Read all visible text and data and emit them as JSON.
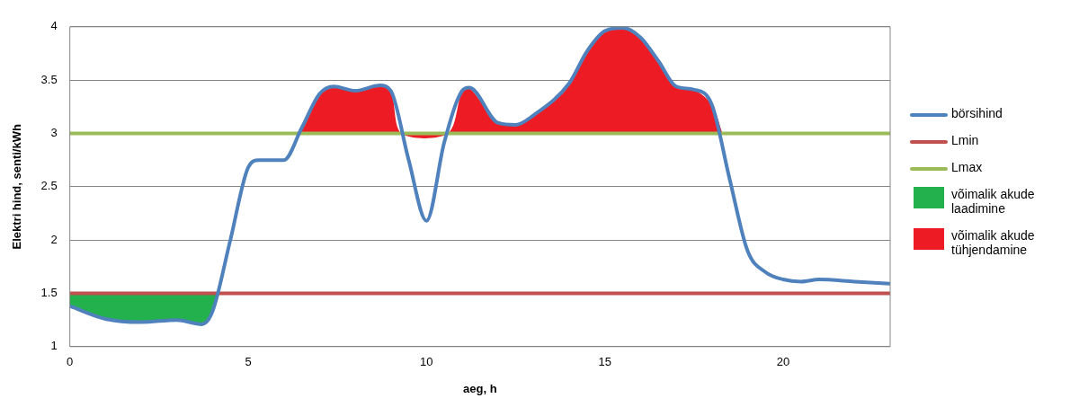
{
  "chart_data": {
    "type": "line",
    "xlabel": "aeg, h",
    "ylabel": "Elektri hind, senti/kWh",
    "xlim": [
      0,
      23
    ],
    "xticks": [
      0,
      5,
      10,
      15,
      20
    ],
    "ylim": [
      1,
      4
    ],
    "yticks": [
      1,
      1.5,
      2,
      2.5,
      3,
      3.5,
      4
    ],
    "grid": "y",
    "legend": "right",
    "marker": "none",
    "line_style": "solid",
    "series": [
      {
        "name": "börsihind",
        "color": "#4f81bd",
        "x": [
          0,
          1,
          2,
          3,
          3.7,
          4,
          4.5,
          5,
          5.3,
          6,
          6.5,
          7,
          7.4,
          8,
          8.7,
          9,
          9.5,
          10,
          10.5,
          11,
          11.2,
          12,
          12.5,
          13,
          14,
          14.5,
          15,
          15.5,
          16,
          16.5,
          17,
          17.5,
          18,
          18.5,
          19,
          19.5,
          20,
          20.5,
          21,
          22,
          23
        ],
        "values": [
          1.38,
          1.26,
          1.23,
          1.25,
          1.21,
          1.33,
          2.0,
          2.68,
          2.75,
          2.75,
          3.05,
          3.37,
          3.44,
          3.4,
          3.45,
          3.4,
          2.75,
          2.18,
          2.92,
          3.4,
          3.43,
          3.1,
          3.08,
          3.17,
          3.47,
          3.77,
          3.96,
          3.99,
          3.9,
          3.68,
          3.44,
          3.41,
          3.27,
          2.57,
          1.9,
          1.7,
          1.63,
          1.61,
          1.63,
          1.61,
          1.59
        ]
      },
      {
        "name": "Lmin",
        "color": "#c0504d",
        "x": [
          0,
          23
        ],
        "values": [
          1.5,
          1.5
        ]
      },
      {
        "name": "Lmax",
        "color": "#9bbb59",
        "x": [
          0,
          23
        ],
        "values": [
          3,
          3
        ]
      },
      {
        "name": "võimalik akude laadimine",
        "type": "area",
        "color": "#22b14c",
        "x": [
          0,
          0,
          1,
          2,
          3,
          3.7,
          4,
          4.15
        ],
        "values": [
          1.5,
          1.38,
          1.26,
          1.23,
          1.25,
          1.21,
          1.33,
          1.5
        ]
      },
      {
        "name": "võimalik akude tühjendamine",
        "type": "area",
        "color": "#ed1c24",
        "x": [
          6.4,
          7,
          7.4,
          8,
          8.7,
          9,
          9.3,
          10.6,
          11,
          11.2,
          12,
          12.5,
          13,
          14,
          14.5,
          15,
          15.5,
          16,
          16.5,
          17,
          17.5,
          18,
          18.3
        ],
        "values": [
          3,
          3.37,
          3.44,
          3.4,
          3.45,
          3.4,
          3,
          3,
          3.4,
          3.43,
          3.1,
          3.08,
          3.17,
          3.47,
          3.77,
          3.96,
          3.99,
          3.9,
          3.68,
          3.44,
          3.41,
          3.27,
          3
        ]
      }
    ]
  }
}
